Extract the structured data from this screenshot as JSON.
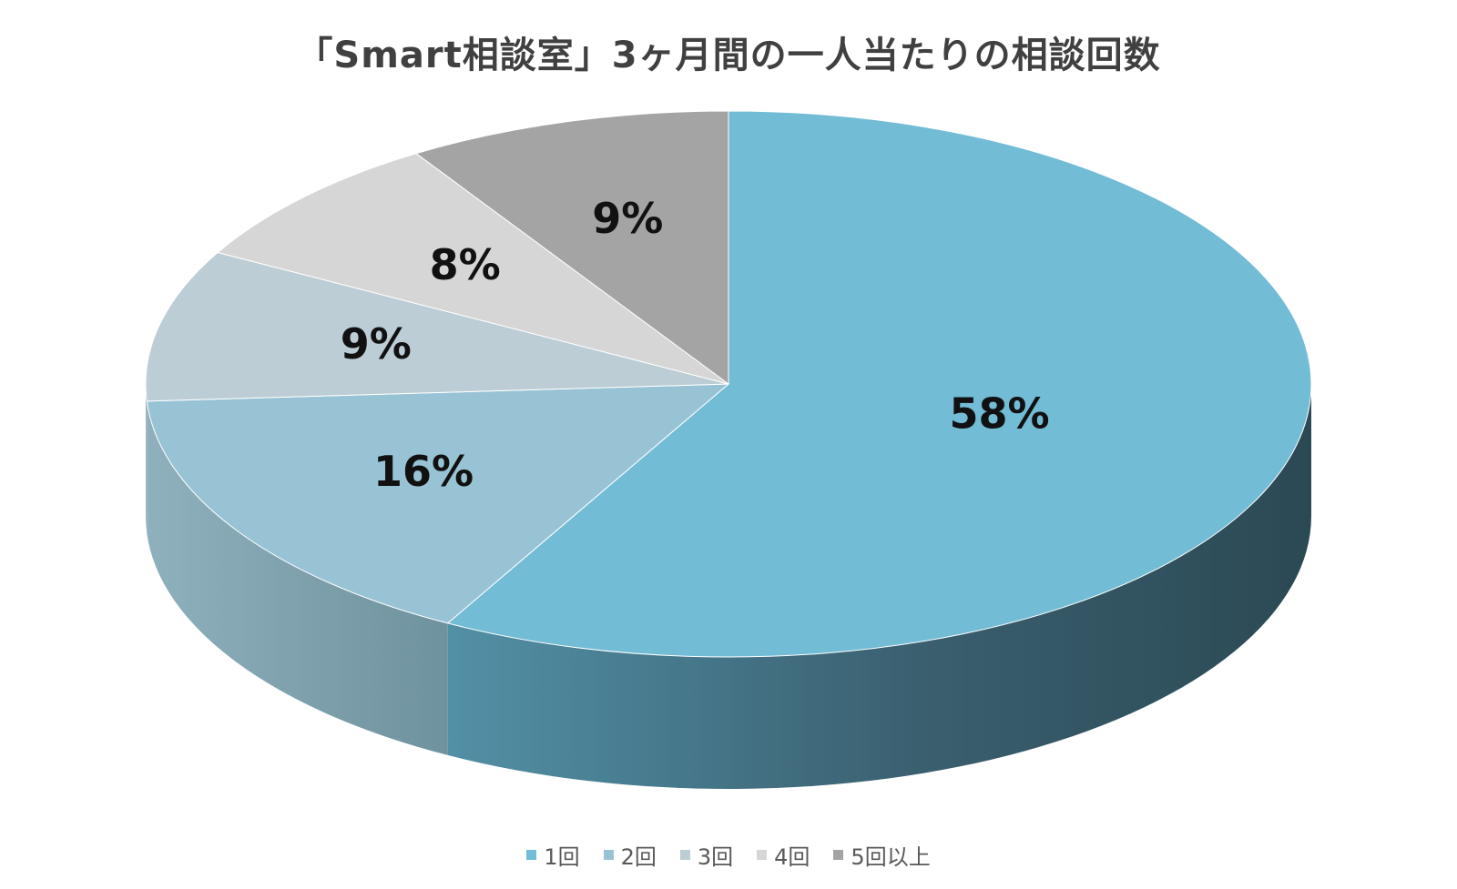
{
  "chart_data": {
    "type": "pie",
    "title": "「Smart相談室」3ヶ月間の一人当たりの相談回数",
    "categories": [
      "1回",
      "2回",
      "3回",
      "4回",
      "5回以上"
    ],
    "values": [
      58,
      16,
      9,
      8,
      9
    ],
    "data_labels": [
      "58%",
      "16%",
      "9%",
      "8%",
      "9%"
    ],
    "colors": [
      "#72bcd6",
      "#98c3d4",
      "#bccdd5",
      "#d6d6d6",
      "#a4a4a4"
    ],
    "side_colors": [
      "#3f6a7b",
      "#7ea3b1",
      "#9fb0b8",
      "#b3b3b3",
      "#888888"
    ],
    "legend_position": "bottom",
    "style": "3d"
  }
}
